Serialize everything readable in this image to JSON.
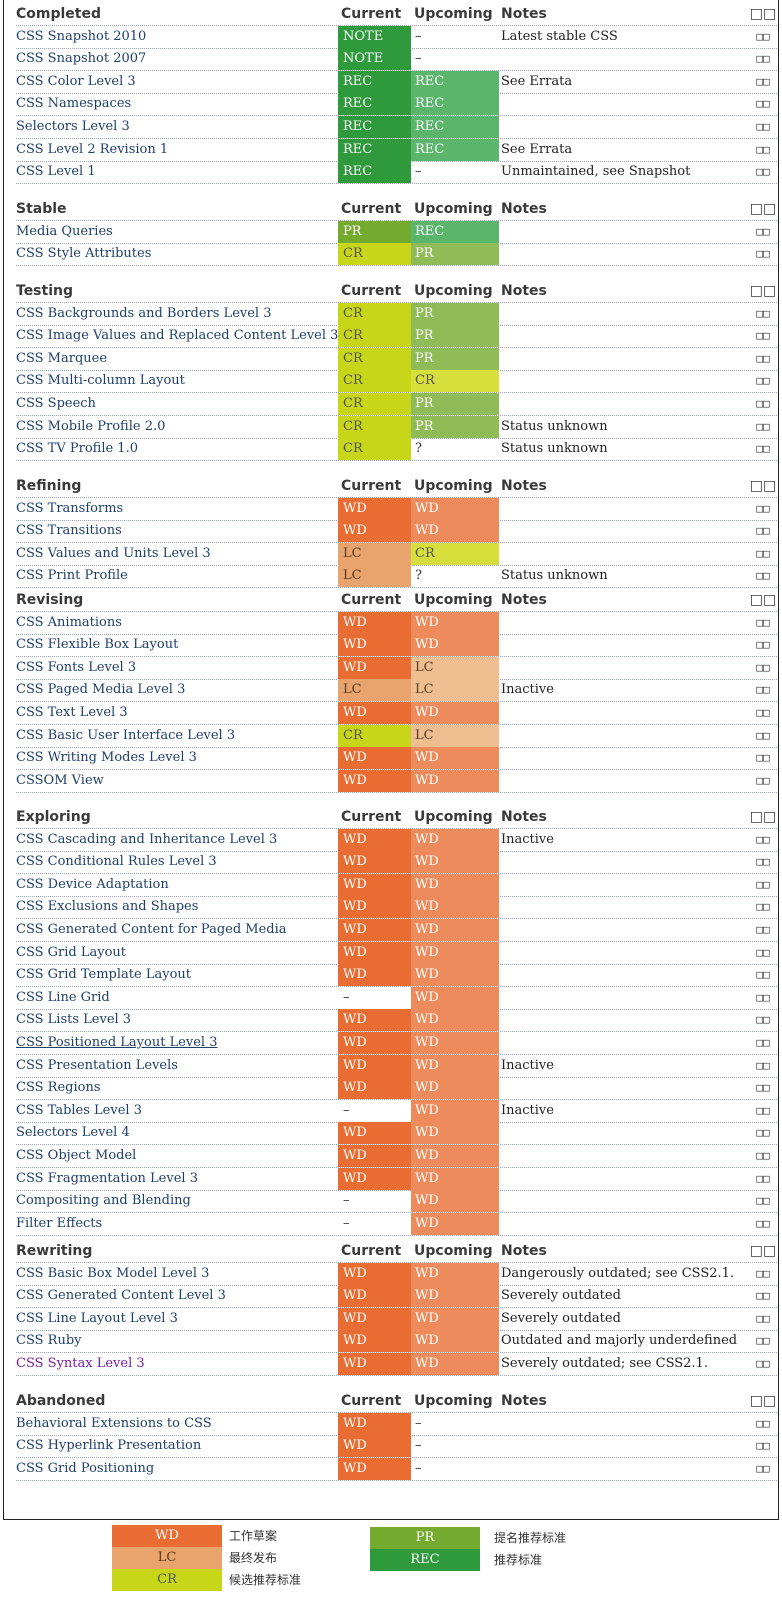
{
  "columns": {
    "current": "Current",
    "upcoming": "Upcoming",
    "notes": "Notes",
    "extra": "□□"
  },
  "sections": [
    {
      "title": "Completed",
      "rows": [
        {
          "name": "CSS Snapshot 2010",
          "current": "NOTE",
          "upcoming": "–",
          "notes": "Latest stable CSS"
        },
        {
          "name": "CSS Snapshot 2007",
          "current": "NOTE",
          "upcoming": "–",
          "notes": ""
        },
        {
          "name": "CSS Color Level 3",
          "current": "REC",
          "upcoming": "REC",
          "notes": "See Errata"
        },
        {
          "name": "CSS Namespaces",
          "current": "REC",
          "upcoming": "REC",
          "notes": ""
        },
        {
          "name": "Selectors Level 3",
          "current": "REC",
          "upcoming": "REC",
          "notes": ""
        },
        {
          "name": "CSS Level 2 Revision 1",
          "current": "REC",
          "upcoming": "REC",
          "notes": "See Errata"
        },
        {
          "name": "CSS Level 1",
          "current": "REC",
          "upcoming": "–",
          "notes": "Unmaintained, see Snapshot"
        }
      ]
    },
    {
      "title": "Stable",
      "rows": [
        {
          "name": "Media Queries",
          "current": "PR",
          "upcoming": "REC",
          "notes": ""
        },
        {
          "name": "CSS Style Attributes",
          "current": "CR",
          "upcoming": "PR",
          "notes": ""
        }
      ]
    },
    {
      "title": "Testing",
      "rows": [
        {
          "name": "CSS Backgrounds and Borders Level 3",
          "current": "CR",
          "upcoming": "PR",
          "notes": ""
        },
        {
          "name": "CSS Image Values and Replaced Content Level 3",
          "current": "CR",
          "upcoming": "PR",
          "notes": ""
        },
        {
          "name": "CSS Marquee",
          "current": "CR",
          "upcoming": "PR",
          "notes": ""
        },
        {
          "name": "CSS Multi-column Layout",
          "current": "CR",
          "upcoming": "CR",
          "notes": ""
        },
        {
          "name": "CSS Speech",
          "current": "CR",
          "upcoming": "PR",
          "notes": ""
        },
        {
          "name": "CSS Mobile Profile 2.0",
          "current": "CR",
          "upcoming": "PR",
          "notes": "Status unknown"
        },
        {
          "name": "CSS TV Profile 1.0",
          "current": "CR",
          "upcoming": "?",
          "notes": "Status unknown"
        }
      ]
    },
    {
      "title": "Refining",
      "rows": [
        {
          "name": "CSS Transforms",
          "current": "WD",
          "upcoming": "WD",
          "notes": ""
        },
        {
          "name": "CSS Transitions",
          "current": "WD",
          "upcoming": "WD",
          "notes": ""
        },
        {
          "name": "CSS Values and Units Level 3",
          "current": "LC",
          "upcoming": "CR",
          "notes": ""
        },
        {
          "name": "CSS Print Profile",
          "current": "LC",
          "upcoming": "?",
          "notes": "Status unknown"
        }
      ]
    },
    {
      "title": "Revising",
      "rows": [
        {
          "name": "CSS Animations",
          "current": "WD",
          "upcoming": "WD",
          "notes": ""
        },
        {
          "name": "CSS Flexible Box Layout",
          "current": "WD",
          "upcoming": "WD",
          "notes": ""
        },
        {
          "name": "CSS Fonts Level 3",
          "current": "WD",
          "upcoming": "LC",
          "notes": ""
        },
        {
          "name": "CSS Paged Media Level 3",
          "current": "LC",
          "upcoming": "LC",
          "notes": "Inactive"
        },
        {
          "name": "CSS Text Level 3",
          "current": "WD",
          "upcoming": "WD",
          "notes": ""
        },
        {
          "name": "CSS Basic User Interface Level 3",
          "current": "CR",
          "upcoming": "LC",
          "notes": ""
        },
        {
          "name": "CSS Writing Modes Level 3",
          "current": "WD",
          "upcoming": "WD",
          "notes": ""
        },
        {
          "name": "CSSOM View",
          "current": "WD",
          "upcoming": "WD",
          "notes": ""
        }
      ]
    },
    {
      "title": "Exploring",
      "rows": [
        {
          "name": "CSS Cascading and Inheritance Level 3",
          "current": "WD",
          "upcoming": "WD",
          "notes": "Inactive"
        },
        {
          "name": "CSS Conditional Rules Level 3",
          "current": "WD",
          "upcoming": "WD",
          "notes": ""
        },
        {
          "name": "CSS Device Adaptation",
          "current": "WD",
          "upcoming": "WD",
          "notes": ""
        },
        {
          "name": "CSS Exclusions and Shapes",
          "current": "WD",
          "upcoming": "WD",
          "notes": ""
        },
        {
          "name": "CSS Generated Content for Paged Media",
          "current": "WD",
          "upcoming": "WD",
          "notes": ""
        },
        {
          "name": "CSS Grid Layout",
          "current": "WD",
          "upcoming": "WD",
          "notes": ""
        },
        {
          "name": "CSS Grid Template Layout",
          "current": "WD",
          "upcoming": "WD",
          "notes": ""
        },
        {
          "name": "CSS Line Grid",
          "current": "–",
          "upcoming": "WD",
          "notes": ""
        },
        {
          "name": "CSS Lists Level 3",
          "current": "WD",
          "upcoming": "WD",
          "notes": ""
        },
        {
          "name": "CSS Positioned Layout Level 3",
          "current": "WD",
          "upcoming": "WD",
          "notes": "",
          "style": "u"
        },
        {
          "name": "CSS Presentation Levels",
          "current": "WD",
          "upcoming": "WD",
          "notes": "Inactive"
        },
        {
          "name": "CSS Regions",
          "current": "WD",
          "upcoming": "WD",
          "notes": ""
        },
        {
          "name": "CSS Tables Level 3",
          "current": "–",
          "upcoming": "WD",
          "notes": "Inactive"
        },
        {
          "name": "Selectors Level 4",
          "current": "WD",
          "upcoming": "WD",
          "notes": ""
        },
        {
          "name": "CSS Object Model",
          "current": "WD",
          "upcoming": "WD",
          "notes": ""
        },
        {
          "name": "CSS Fragmentation Level 3",
          "current": "WD",
          "upcoming": "WD",
          "notes": ""
        },
        {
          "name": "Compositing and Blending",
          "current": "–",
          "upcoming": "WD",
          "notes": ""
        },
        {
          "name": "Filter Effects",
          "current": "–",
          "upcoming": "WD",
          "notes": ""
        }
      ]
    },
    {
      "title": "Rewriting",
      "rows": [
        {
          "name": "CSS Basic Box Model Level 3",
          "current": "WD",
          "upcoming": "WD",
          "notes": "Dangerously outdated; see CSS2.1."
        },
        {
          "name": "CSS Generated Content Level 3",
          "current": "WD",
          "upcoming": "WD",
          "notes": "Severely outdated"
        },
        {
          "name": "CSS Line Layout Level 3",
          "current": "WD",
          "upcoming": "WD",
          "notes": "Severely outdated"
        },
        {
          "name": "CSS Ruby",
          "current": "WD",
          "upcoming": "WD",
          "notes": "Outdated and majorly underdefined"
        },
        {
          "name": "CSS Syntax Level 3",
          "current": "WD",
          "upcoming": "WD",
          "notes": "Severely outdated; see CSS2.1.",
          "style": "v"
        }
      ]
    },
    {
      "title": "Abandoned",
      "rows": [
        {
          "name": "Behavioral Extensions to CSS",
          "current": "WD",
          "upcoming": "–",
          "notes": ""
        },
        {
          "name": "CSS Hyperlink Presentation",
          "current": "WD",
          "upcoming": "–",
          "notes": ""
        },
        {
          "name": "CSS Grid Positioning",
          "current": "WD",
          "upcoming": "–",
          "notes": ""
        }
      ]
    }
  ],
  "legend": [
    {
      "code": "WD",
      "label": "工作草案"
    },
    {
      "code": "LC",
      "label": "最终发布"
    },
    {
      "code": "CR",
      "label": "候选推荐标准"
    },
    {
      "code": "PR",
      "label": "提名推荐标准"
    },
    {
      "code": "REC",
      "label": "推荐标准"
    }
  ],
  "colors": {
    "REC": "#2e9a3c",
    "PR": "#74aa2e",
    "CR": "#c8d61a",
    "WD": "#e96c32",
    "LC": "#e8a46c"
  }
}
